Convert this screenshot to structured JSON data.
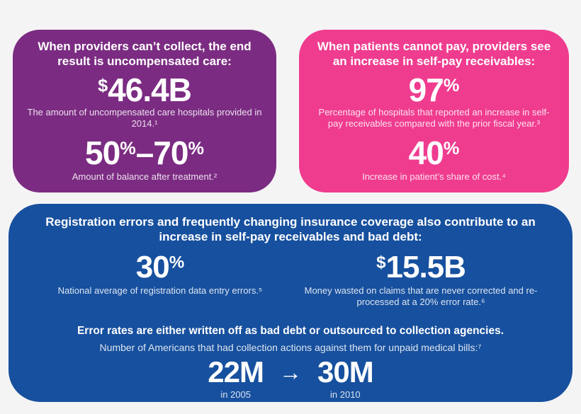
{
  "colors": {
    "background": "#f5f4f5",
    "purple_panel": "#7b2c82",
    "pink_panel": "#ef3c8f",
    "blue_panel": "#17509e",
    "text": "#ffffff"
  },
  "panels": {
    "uncompensated_care": {
      "heading": "When providers can’t collect, the end result is uncompensated care:",
      "stat1": {
        "prefix": "$",
        "value": "46.4B",
        "caption": "The amount of uncompensated care hospitals provided in 2014.¹"
      },
      "stat2": {
        "num1": "50",
        "pct1": "%",
        "separator": "–",
        "num2": "70",
        "pct2": "%",
        "caption": "Amount of balance after treatment.²"
      }
    },
    "self_pay": {
      "heading": "When patients cannot pay, providers see an increase in self-pay receivables:",
      "stat1": {
        "value": "97",
        "suffix": "%",
        "caption": "Percentage of hospitals that reported an increase in self-pay receivables compared with the prior fiscal year.³"
      },
      "stat2": {
        "value": "40",
        "suffix": "%",
        "caption": "Increase in patient’s share of cost.⁴"
      }
    },
    "registration_errors": {
      "heading": "Registration errors and frequently changing insurance coverage also contribute to an increase in self-pay receivables and bad debt:",
      "stat1": {
        "value": "30",
        "suffix": "%",
        "caption": "National average of registration data entry errors.⁵"
      },
      "stat2": {
        "prefix": "$",
        "value": "15.5B",
        "caption": "Money wasted on claims that are never corrected and re-processed at a 20% error rate.⁶"
      },
      "statement": "Error rates are either written off as bad debt or outsourced to collection agencies.",
      "collections_caption": "Number of Americans that had collection actions against them for unpaid medical bills:⁷",
      "comparison": {
        "from_value": "22M",
        "from_label": "in 2005",
        "arrow": "→",
        "to_value": "30M",
        "to_label": "in 2010"
      }
    }
  }
}
